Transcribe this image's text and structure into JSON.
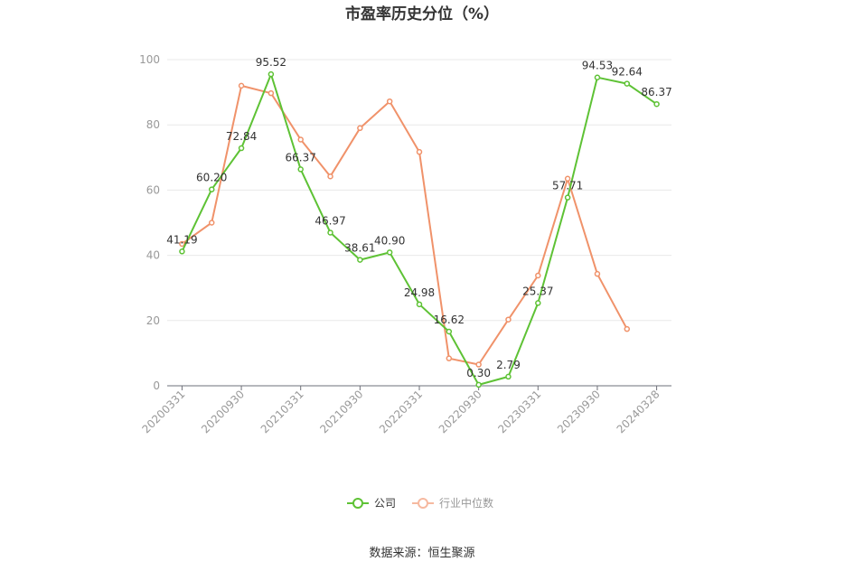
{
  "chart_data": {
    "type": "line",
    "title": "市盈率历史分位（%）",
    "source": "数据来源：恒生聚源",
    "ylim": [
      0,
      100
    ],
    "yticks": [
      0,
      20,
      40,
      60,
      80,
      100
    ],
    "x_tick_labels": [
      "20200331",
      "20200930",
      "20210331",
      "20210930",
      "20220331",
      "20220930",
      "20230331",
      "20230930",
      "20240328"
    ],
    "legend_position": "bottom",
    "grid": true,
    "series": [
      {
        "name": "公司",
        "color": "#5ec235",
        "show_labels": true,
        "values": [
          41.19,
          60.2,
          72.84,
          95.52,
          66.37,
          46.97,
          38.61,
          40.9,
          24.98,
          16.62,
          0.3,
          2.79,
          25.37,
          57.71,
          94.53,
          92.64,
          86.37
        ]
      },
      {
        "name": "行业中位数",
        "color": "#f0926a",
        "show_labels": false,
        "values": [
          43.5,
          50.0,
          92.0,
          89.7,
          75.5,
          64.2,
          79.0,
          87.2,
          71.7,
          8.4,
          6.5,
          20.3,
          33.8,
          63.5,
          34.3,
          17.4,
          null
        ]
      }
    ]
  }
}
